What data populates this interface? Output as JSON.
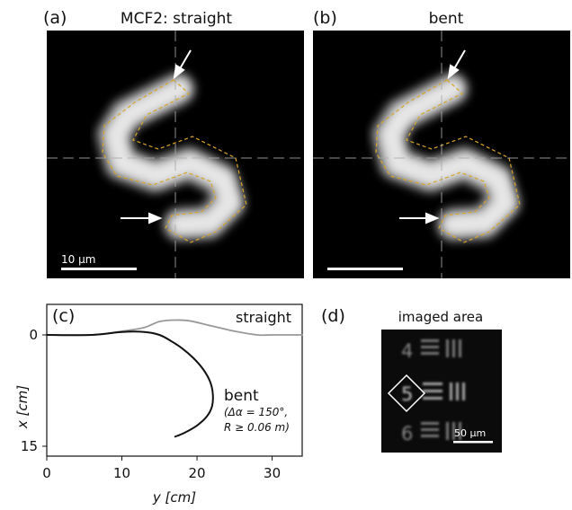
{
  "panel_a": {
    "label": "(a)",
    "title": "MCF2: straight",
    "scalebar_label": "10 µm"
  },
  "panel_b": {
    "label": "(b)",
    "title": "bent"
  },
  "panel_c": {
    "label": "(c)",
    "series_labels": {
      "straight": "straight",
      "bent": "bent",
      "bent_note_line1": "(Δα = 150°,",
      "bent_note_line2": "R ≥ 0.06 m)"
    }
  },
  "panel_d": {
    "label": "(d)",
    "title": "imaged area",
    "scalebar_label": "50 µm",
    "target_numbers": [
      "4",
      "5",
      "6"
    ]
  },
  "chart_data": {
    "type": "line",
    "xlabel": "y [cm]",
    "ylabel": "x [cm]",
    "xlim": [
      0,
      34
    ],
    "ylim": [
      15,
      -1.5
    ],
    "xticks": [
      0,
      10,
      20,
      30
    ],
    "yticks": [
      0,
      15
    ],
    "grid": false,
    "series": [
      {
        "name": "straight",
        "color": "#999999",
        "x": [
          0,
          6,
          10,
          13,
          15,
          17,
          19,
          22,
          25,
          28,
          30,
          34
        ],
        "y": [
          0,
          0,
          -0.5,
          -1.0,
          -1.8,
          -2.0,
          -1.9,
          -1.2,
          -0.5,
          0,
          0,
          0
        ]
      },
      {
        "name": "bent",
        "color": "#111111",
        "x": [
          0,
          6,
          10,
          13,
          15,
          16.5,
          18,
          19.5,
          20.8,
          21.7,
          22.1,
          22.0,
          21.3,
          20.0,
          18.3,
          17.1
        ],
        "y": [
          0,
          0,
          -0.4,
          -0.4,
          0,
          0.8,
          1.8,
          3.1,
          4.6,
          6.2,
          7.9,
          9.6,
          11.0,
          12.2,
          13.2,
          13.7
        ]
      }
    ]
  }
}
